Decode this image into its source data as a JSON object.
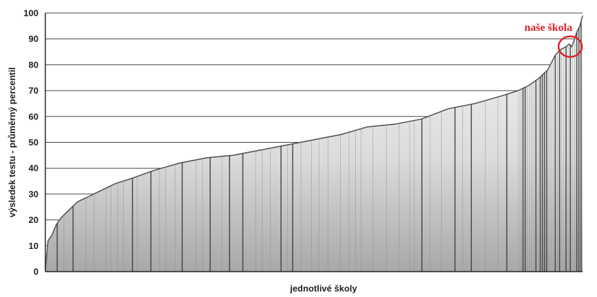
{
  "chart_data": {
    "type": "area",
    "title": "",
    "xlabel": "jednotlivé školy",
    "ylabel": "výsledek testu - průměrný percentil",
    "ylim": [
      0,
      100
    ],
    "yticks": [
      0,
      10,
      20,
      30,
      40,
      50,
      60,
      70,
      80,
      90,
      100
    ],
    "grid": true,
    "highlight_color": "#e0202a",
    "annotation": {
      "text": "naše škola",
      "x": 0.977,
      "y": 87
    },
    "series": [
      {
        "x": [
          0.0,
          0.005,
          0.012,
          0.02,
          0.03,
          0.045,
          0.06,
          0.08,
          0.1,
          0.13,
          0.16,
          0.2,
          0.25,
          0.3,
          0.35,
          0.4,
          0.45,
          0.5,
          0.55,
          0.6,
          0.65,
          0.7,
          0.75,
          0.8,
          0.85,
          0.88,
          0.9,
          0.92,
          0.935,
          0.95,
          0.96,
          0.97,
          0.975,
          0.98,
          0.985,
          0.99,
          0.995,
          1.0
        ],
        "values": [
          1,
          12,
          14,
          18,
          21,
          24,
          27,
          29,
          31,
          34,
          36,
          39,
          42,
          44,
          45,
          47,
          49,
          51,
          53,
          56,
          57,
          59,
          63,
          65,
          68,
          70,
          72,
          75,
          78,
          84,
          86,
          87,
          88,
          87,
          90,
          93,
          95,
          99
        ]
      }
    ]
  }
}
